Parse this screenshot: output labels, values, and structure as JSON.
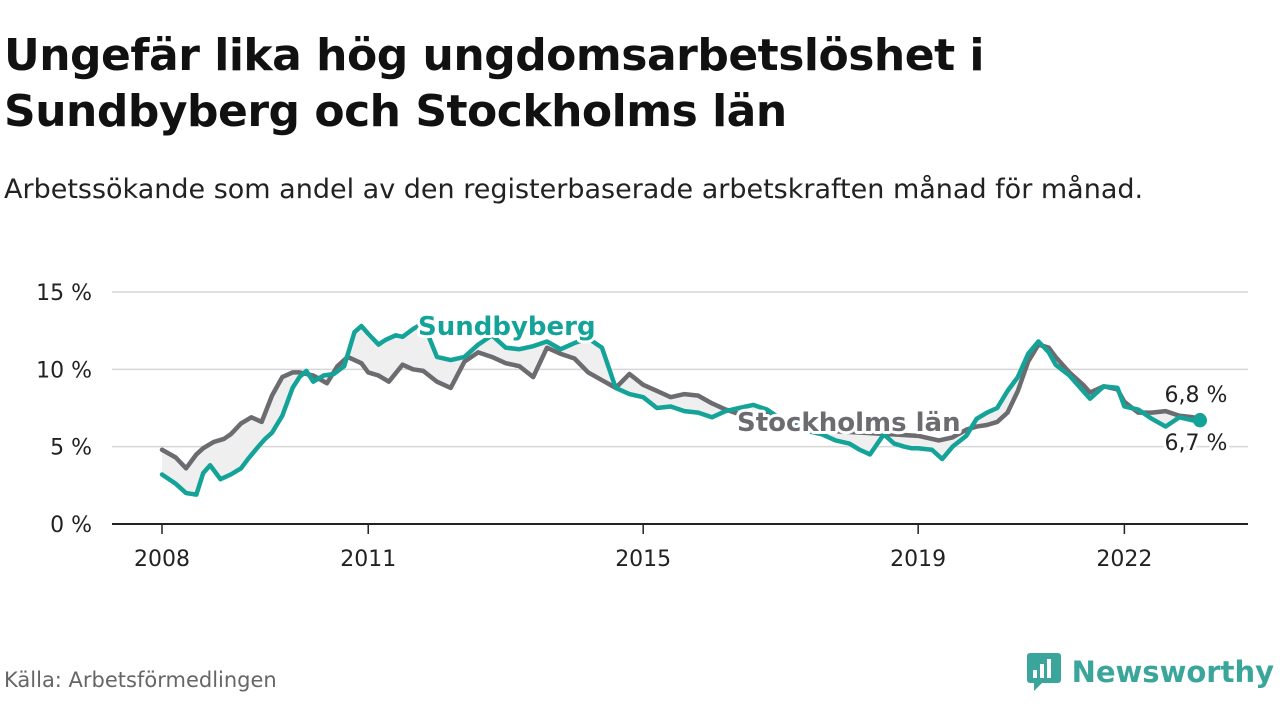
{
  "header": {
    "title": "Ungefär lika hög ungdomsarbetslöshet i Sundbyberg och Stockholms län",
    "subtitle": "Arbetssökande som andel av den registerbaserade arbetskraften månad för månad."
  },
  "footer": {
    "source": "Källa: Arbetsförmedlingen",
    "brand": "Newsworthy"
  },
  "colors": {
    "sundbyberg": "#14a398",
    "stockholm": "#6b6b70",
    "grid": "#d6d6d6",
    "axis": "#222222"
  },
  "chart_data": {
    "type": "line",
    "title": "Ungefär lika hög ungdomsarbetslöshet i Sundbyberg och Stockholms län",
    "xlabel": "",
    "ylabel": "",
    "ylim": [
      0,
      15
    ],
    "xlim": [
      2008.0,
      2023.5
    ],
    "y_ticks": [
      0,
      5,
      10,
      15
    ],
    "y_tick_labels": [
      "0 %",
      "5 %",
      "10 %",
      "15 %"
    ],
    "x_ticks": [
      2008,
      2011,
      2015,
      2019,
      2022
    ],
    "x_tick_labels": [
      "2008",
      "2011",
      "2015",
      "2019",
      "2022"
    ],
    "end_labels": {
      "stockholm": "6,8 %",
      "sundbyberg": "6,7 %"
    },
    "series": [
      {
        "name": "Sundbyberg",
        "key": "sundbyberg",
        "x": [
          2008.0,
          2008.2,
          2008.35,
          2008.5,
          2008.6,
          2008.7,
          2008.85,
          2009.0,
          2009.15,
          2009.25,
          2009.4,
          2009.5,
          2009.6,
          2009.75,
          2009.9,
          2010.0,
          2010.1,
          2010.2,
          2010.35,
          2010.5,
          2010.65,
          2010.8,
          2010.9,
          2011.0,
          2011.15,
          2011.25,
          2011.4,
          2011.5,
          2011.65,
          2011.8,
          2012.0,
          2012.2,
          2012.4,
          2012.6,
          2012.8,
          2013.0,
          2013.2,
          2013.4,
          2013.6,
          2013.8,
          2014.0,
          2014.2,
          2014.4,
          2014.6,
          2014.8,
          2015.0,
          2015.2,
          2015.4,
          2015.6,
          2015.8,
          2016.0,
          2016.2,
          2016.4,
          2016.6,
          2016.8,
          2017.0,
          2017.2,
          2017.4,
          2017.6,
          2017.8,
          2018.0,
          2018.15,
          2018.3,
          2018.5,
          2018.65,
          2018.8,
          2018.9,
          2019.0,
          2019.2,
          2019.35,
          2019.5,
          2019.7,
          2019.85,
          2020.0,
          2020.15,
          2020.3,
          2020.45,
          2020.6,
          2020.75,
          2020.9,
          2021.0,
          2021.2,
          2021.4,
          2021.5,
          2021.7,
          2021.9,
          2022.0,
          2022.2,
          2022.4,
          2022.6,
          2022.8,
          2023.0,
          2023.1
        ],
        "values": [
          3.2,
          2.6,
          2.0,
          1.9,
          3.3,
          3.8,
          2.9,
          3.2,
          3.6,
          4.2,
          5.0,
          5.5,
          5.9,
          7.0,
          8.8,
          9.5,
          9.9,
          9.2,
          9.6,
          9.7,
          10.2,
          12.4,
          12.8,
          12.3,
          11.6,
          11.9,
          12.2,
          12.1,
          12.6,
          13.0,
          10.8,
          10.6,
          10.8,
          11.6,
          12.2,
          11.4,
          11.3,
          11.5,
          11.8,
          11.3,
          11.7,
          12.0,
          11.4,
          8.8,
          8.4,
          8.2,
          7.5,
          7.6,
          7.3,
          7.2,
          6.9,
          7.3,
          7.5,
          7.7,
          7.4,
          6.8,
          6.4,
          6.0,
          5.8,
          5.4,
          5.2,
          4.8,
          4.5,
          5.8,
          5.2,
          5.0,
          4.9,
          4.9,
          4.8,
          4.2,
          5.0,
          5.7,
          6.8,
          7.2,
          7.5,
          8.6,
          9.5,
          11.0,
          11.8,
          11.1,
          10.3,
          9.6,
          8.6,
          8.1,
          8.9,
          8.8,
          7.6,
          7.4,
          6.8,
          6.3,
          6.9,
          6.7,
          6.7
        ]
      },
      {
        "name": "Stockholms län",
        "key": "stockholm",
        "x": [
          2008.0,
          2008.2,
          2008.35,
          2008.5,
          2008.6,
          2008.75,
          2008.9,
          2009.0,
          2009.15,
          2009.3,
          2009.45,
          2009.6,
          2009.75,
          2009.9,
          2010.0,
          2010.2,
          2010.4,
          2010.55,
          2010.7,
          2010.9,
          2011.0,
          2011.15,
          2011.3,
          2011.5,
          2011.65,
          2011.8,
          2012.0,
          2012.2,
          2012.4,
          2012.6,
          2012.8,
          2013.0,
          2013.2,
          2013.4,
          2013.6,
          2013.8,
          2014.0,
          2014.2,
          2014.4,
          2014.6,
          2014.8,
          2015.0,
          2015.2,
          2015.4,
          2015.6,
          2015.8,
          2016.0,
          2016.2,
          2016.4,
          2016.6,
          2016.8,
          2017.0,
          2017.4,
          2017.8,
          2018.2,
          2018.6,
          2019.0,
          2019.3,
          2019.5,
          2019.7,
          2019.85,
          2020.0,
          2020.15,
          2020.3,
          2020.45,
          2020.6,
          2020.75,
          2020.9,
          2021.0,
          2021.2,
          2021.4,
          2021.5,
          2021.7,
          2021.9,
          2022.0,
          2022.2,
          2022.4,
          2022.6,
          2022.8,
          2023.0,
          2023.1
        ],
        "values": [
          4.8,
          4.3,
          3.6,
          4.5,
          4.9,
          5.3,
          5.5,
          5.8,
          6.5,
          6.9,
          6.6,
          8.3,
          9.5,
          9.8,
          9.8,
          9.6,
          9.1,
          10.2,
          10.8,
          10.4,
          9.8,
          9.6,
          9.2,
          10.3,
          10.0,
          9.9,
          9.2,
          8.8,
          10.5,
          11.1,
          10.8,
          10.4,
          10.2,
          9.5,
          11.4,
          11.0,
          10.7,
          9.8,
          9.3,
          8.8,
          9.7,
          9.0,
          8.6,
          8.2,
          8.4,
          8.3,
          7.8,
          7.4,
          7.1,
          6.9,
          7.2,
          6.6,
          6.3,
          6.0,
          5.9,
          5.8,
          5.7,
          5.4,
          5.6,
          6.1,
          6.3,
          6.4,
          6.6,
          7.2,
          8.6,
          10.5,
          11.6,
          11.4,
          10.8,
          9.8,
          9.0,
          8.5,
          8.9,
          8.7,
          7.9,
          7.2,
          7.2,
          7.3,
          7.0,
          6.9,
          6.8
        ]
      }
    ]
  }
}
